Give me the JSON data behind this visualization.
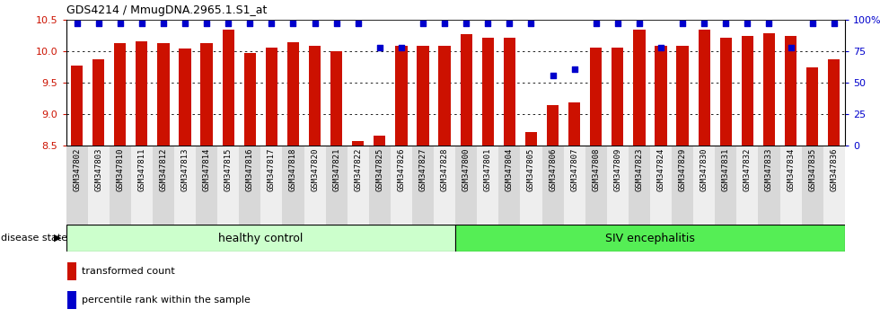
{
  "title": "GDS4214 / MmugDNA.2965.1.S1_at",
  "samples": [
    "GSM347802",
    "GSM347803",
    "GSM347810",
    "GSM347811",
    "GSM347812",
    "GSM347813",
    "GSM347814",
    "GSM347815",
    "GSM347816",
    "GSM347817",
    "GSM347818",
    "GSM347820",
    "GSM347821",
    "GSM347822",
    "GSM347825",
    "GSM347826",
    "GSM347827",
    "GSM347828",
    "GSM347800",
    "GSM347801",
    "GSM347804",
    "GSM347805",
    "GSM347806",
    "GSM347807",
    "GSM347808",
    "GSM347809",
    "GSM347823",
    "GSM347824",
    "GSM347829",
    "GSM347830",
    "GSM347831",
    "GSM347832",
    "GSM347833",
    "GSM347834",
    "GSM347835",
    "GSM347836"
  ],
  "bar_values": [
    9.77,
    9.87,
    10.13,
    10.16,
    10.13,
    10.04,
    10.13,
    10.35,
    9.97,
    10.05,
    10.14,
    10.09,
    10.0,
    8.57,
    8.65,
    10.09,
    10.09,
    10.09,
    10.27,
    10.22,
    10.22,
    8.71,
    9.14,
    9.19,
    10.06,
    10.06,
    10.35,
    10.08,
    10.08,
    10.35,
    10.22,
    10.24,
    10.28,
    10.24,
    9.75,
    9.87
  ],
  "percentile_values": [
    97,
    97,
    97,
    97,
    97,
    97,
    97,
    97,
    97,
    97,
    97,
    97,
    97,
    97,
    78,
    78,
    97,
    97,
    97,
    97,
    97,
    97,
    56,
    61,
    97,
    97,
    97,
    78,
    97,
    97,
    97,
    97,
    97,
    78,
    97,
    97
  ],
  "n_healthy": 18,
  "n_siv": 18,
  "bar_color": "#cc1100",
  "percentile_color": "#0000cc",
  "ylim_left": [
    8.5,
    10.5
  ],
  "ylim_right": [
    0,
    100
  ],
  "yticks_left": [
    8.5,
    9.0,
    9.5,
    10.0,
    10.5
  ],
  "yticks_right": [
    0,
    25,
    50,
    75,
    100
  ],
  "ytick_labels_right": [
    "0",
    "25",
    "50",
    "75",
    "100%"
  ],
  "healthy_label": "healthy control",
  "siv_label": "SIV encephalitis",
  "disease_state_label": "disease state",
  "legend_bar_label": "transformed count",
  "legend_pct_label": "percentile rank within the sample",
  "bg_color": "#ffffff",
  "tick_label_color_left": "#cc1100",
  "tick_label_color_right": "#0000cc",
  "healthy_bg": "#ccffcc",
  "siv_bg": "#55ee55",
  "grid_color": "#000000",
  "tick_bg_even": "#d8d8d8",
  "tick_bg_odd": "#eeeeee"
}
